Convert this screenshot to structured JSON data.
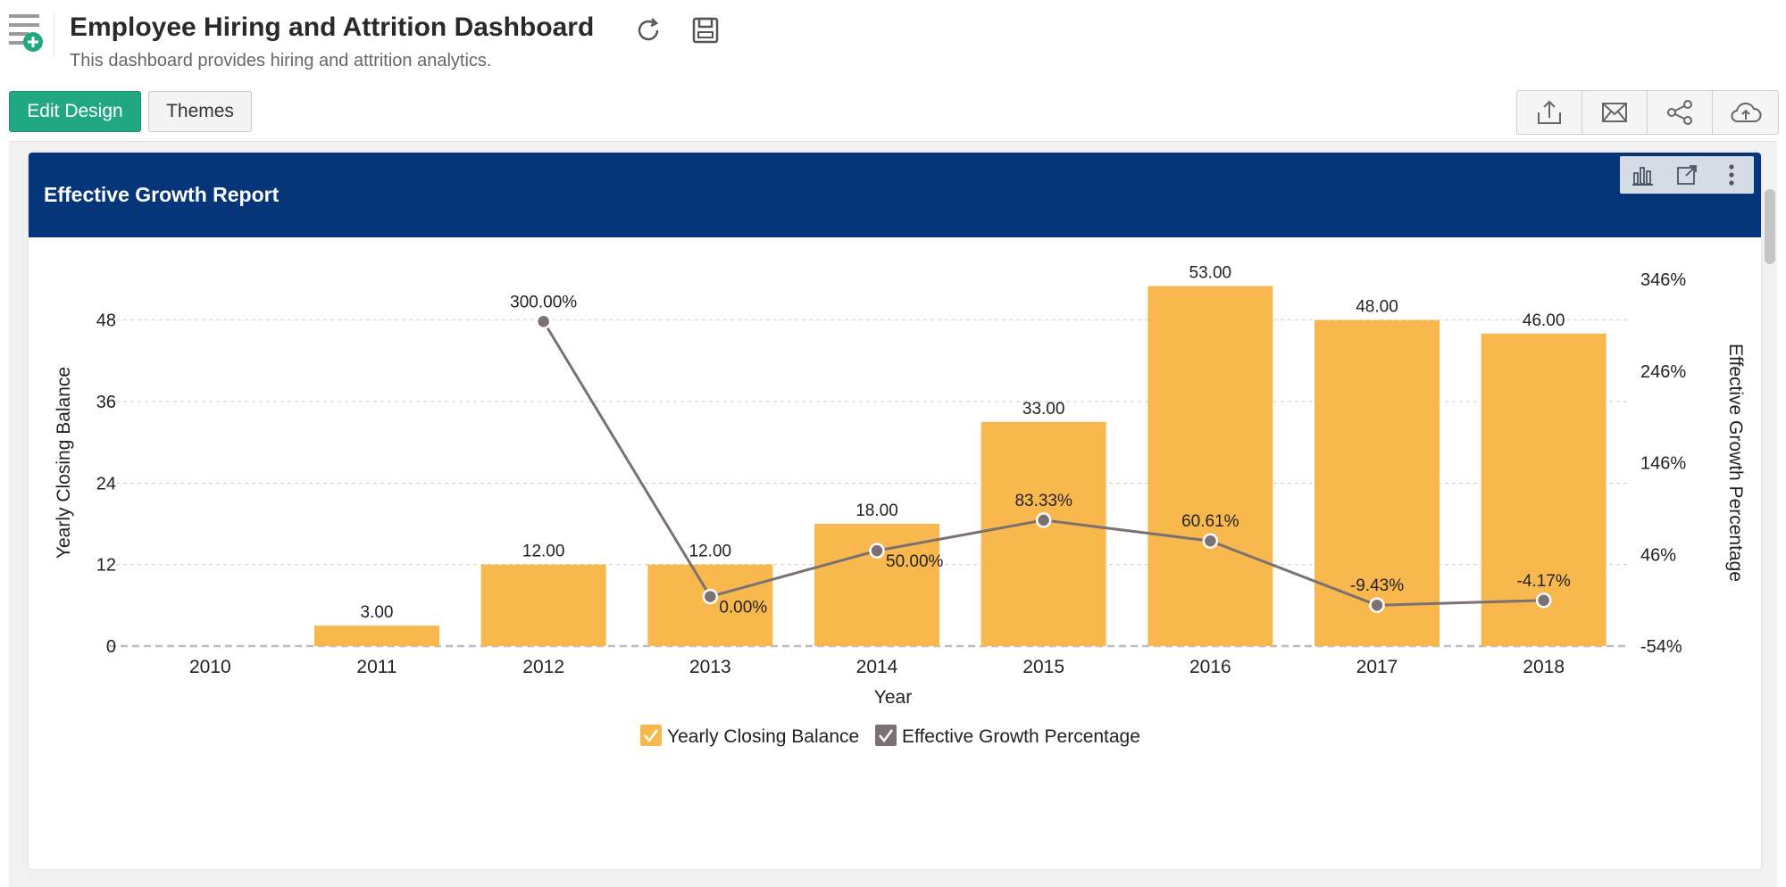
{
  "header": {
    "title": "Employee Hiring and Attrition Dashboard",
    "subtitle": "This dashboard provides hiring and attrition analytics."
  },
  "toolbar": {
    "edit_label": "Edit Design",
    "themes_label": "Themes",
    "actions": [
      "export-icon",
      "mail-icon",
      "share-icon",
      "publish-cloud-icon"
    ]
  },
  "colors": {
    "primary": "#21a882",
    "header_bg": "#06357a",
    "bar": "#f8b84e",
    "line": "#7b7173"
  },
  "report": {
    "title": "Effective Growth Report"
  },
  "chart_data": {
    "type": "bar",
    "categories": [
      "2010",
      "2011",
      "2012",
      "2013",
      "2014",
      "2015",
      "2016",
      "2017",
      "2018"
    ],
    "xlabel": "Year",
    "ylabel": "Yearly Closing Balance",
    "y2label": "Effective Growth Percentage",
    "ylim": [
      0,
      54
    ],
    "yticks": [
      0,
      12,
      24,
      36,
      48
    ],
    "y2lim": [
      -54,
      346
    ],
    "y2ticks": [
      "-54%",
      "46%",
      "146%",
      "246%",
      "346%"
    ],
    "grid": true,
    "legend": "bottom",
    "series": [
      {
        "name": "Yearly Closing Balance",
        "type": "bar",
        "axis": "left",
        "values": [
          0,
          3,
          12,
          12,
          18,
          33,
          53,
          48,
          46
        ],
        "labels": [
          "",
          "3.00",
          "12.00",
          "12.00",
          "18.00",
          "33.00",
          "53.00",
          "48.00",
          "46.00"
        ]
      },
      {
        "name": "Effective Growth Percentage",
        "type": "line",
        "axis": "right",
        "values": [
          null,
          null,
          300,
          0,
          50,
          83.33,
          60.61,
          -9.43,
          -4.17
        ],
        "labels": [
          "",
          "",
          "300.00%",
          "0.00%",
          "50.00%",
          "83.33%",
          "60.61%",
          "-9.43%",
          "-4.17%"
        ]
      }
    ]
  }
}
